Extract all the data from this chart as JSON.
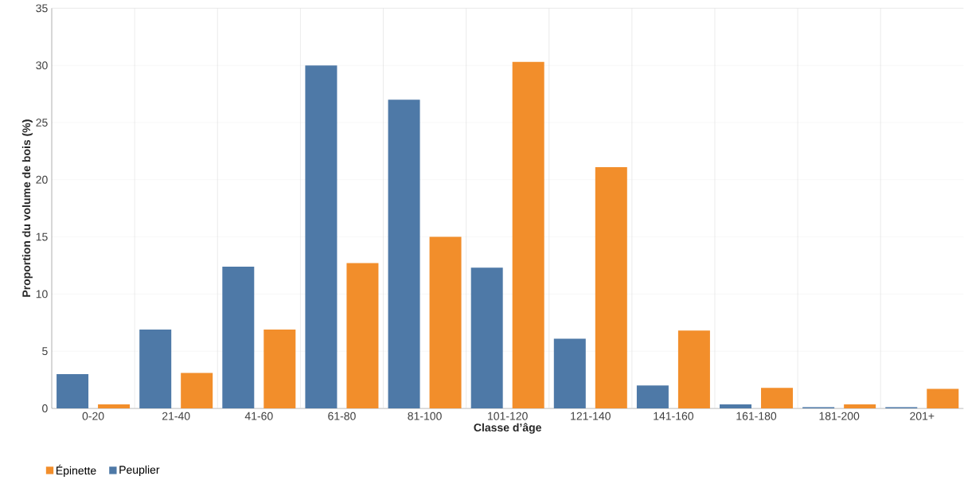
{
  "chart_data": {
    "type": "bar",
    "xlabel": "Classe d’âge",
    "ylabel": "Proportion du volume de bois (%)",
    "categories": [
      "0-20",
      "21-40",
      "41-60",
      "61-80",
      "81-100",
      "101-120",
      "121-140",
      "141-160",
      "161-180",
      "181-200",
      "201+"
    ],
    "series": [
      {
        "name": "Peuplier",
        "color": "#4e79a7",
        "values": [
          3.0,
          6.9,
          12.4,
          30.0,
          27.0,
          12.3,
          6.1,
          2.0,
          0.35,
          0.1,
          0.1
        ]
      },
      {
        "name": "Épinette",
        "color": "#f28e2b",
        "values": [
          0.35,
          3.1,
          6.9,
          12.7,
          15.0,
          30.3,
          21.1,
          6.8,
          1.8,
          0.35,
          1.7
        ]
      }
    ],
    "ylim": [
      0,
      35
    ],
    "yticks": [
      0,
      5,
      10,
      15,
      20,
      25,
      30,
      35
    ],
    "grid": true,
    "legend": "bottom left"
  }
}
